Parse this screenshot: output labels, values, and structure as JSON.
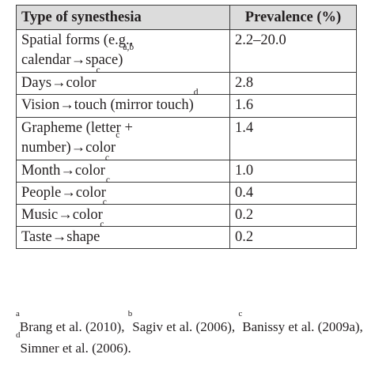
{
  "table": {
    "headers": [
      "Type of synesthesia",
      "Prevalence (%)"
    ],
    "rows": [
      {
        "type": "Spatial forms (e.g., calendar→space)",
        "sup": "a,b",
        "prevalence": "2.2–20.0"
      },
      {
        "type": "Days→color",
        "sup": "c",
        "prevalence": "2.8"
      },
      {
        "type": "Vision→touch (mirror touch)",
        "sup": "d",
        "prevalence": "1.6"
      },
      {
        "type": "Grapheme (letter + number)→color",
        "sup": "c",
        "prevalence": "1.4"
      },
      {
        "type": "Month→color",
        "sup": "c",
        "prevalence": "1.0"
      },
      {
        "type": "People→color",
        "sup": "c",
        "prevalence": "0.4"
      },
      {
        "type": "Music→color",
        "sup": "c",
        "prevalence": "0.2"
      },
      {
        "type": "Taste→shape",
        "sup": "c",
        "prevalence": "0.2"
      }
    ]
  },
  "footnotes": [
    {
      "mark": "a",
      "text": "Brang et al. (2010), "
    },
    {
      "mark": "b",
      "text": "Sagiv et al. (2006), "
    },
    {
      "mark": "c",
      "text": "Banissy et al. (2009a), "
    },
    {
      "mark": "d",
      "text": "Simner et al. (2006)."
    }
  ]
}
